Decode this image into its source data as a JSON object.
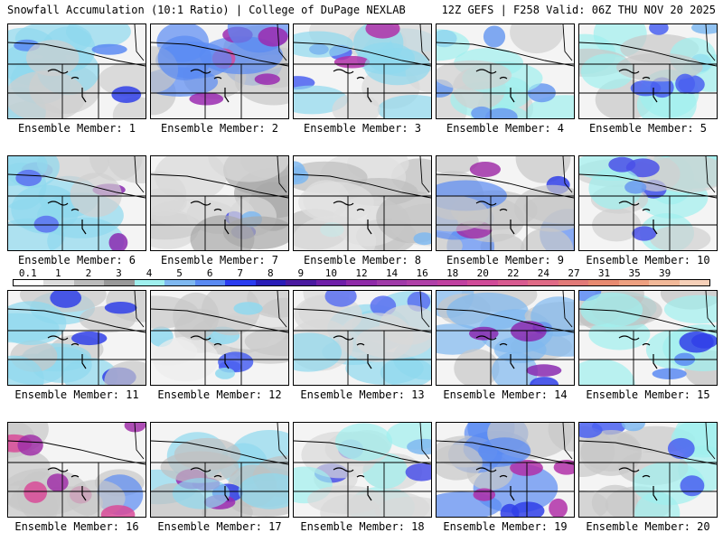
{
  "header": {
    "title": "Snowfall Accumulation (10:1 Ratio) | College of DuPage NEXLAB",
    "run_info": "12Z GEFS | F258 Valid: 06Z THU NOV 20 2025"
  },
  "colorbar": {
    "labels": [
      "0.1",
      "1",
      "2",
      "3",
      "4",
      "5",
      "6",
      "7",
      "8",
      "9",
      "10",
      "12",
      "14",
      "16",
      "18",
      "20",
      "22",
      "24",
      "27",
      "31",
      "35",
      "39"
    ],
    "colors": [
      "#ffffff",
      "#dddddd",
      "#bbbbbb",
      "#999999",
      "#9ff0ee",
      "#7fb8f0",
      "#5a8af2",
      "#2b3cf0",
      "#2a1db8",
      "#4a1aa0",
      "#6f1fa8",
      "#8f2aa8",
      "#a03aa8",
      "#b040a8",
      "#c040a0",
      "#d04a98",
      "#d85a90",
      "#e06a86",
      "#e27a78",
      "#e88a70",
      "#eea080",
      "#f2b898",
      "#f6d0b8"
    ]
  },
  "members": [
    {
      "label": "Ensemble Member: 1",
      "palette": [
        "#cfcfcf",
        "#8fd8ee",
        "#5a8af2",
        "#3040e8"
      ]
    },
    {
      "label": "Ensemble Member: 2",
      "palette": [
        "#c8c8c8",
        "#5a8af2",
        "#9a2ab0",
        "#d44aa0"
      ]
    },
    {
      "label": "Ensemble Member: 3",
      "palette": [
        "#d8d8d8",
        "#8fd8ee",
        "#4a60f0",
        "#b030a8"
      ]
    },
    {
      "label": "Ensemble Member: 4",
      "palette": [
        "#d0d0d0",
        "#9ff0ee",
        "#6a9af0",
        "#4a50e8"
      ]
    },
    {
      "label": "Ensemble Member: 5",
      "palette": [
        "#c8c8c8",
        "#9ff0ee",
        "#7fb8f0",
        "#4a60f0"
      ]
    },
    {
      "label": "Ensemble Member: 6",
      "palette": [
        "#d0d0d0",
        "#8fd8ee",
        "#5a70f0",
        "#8a2ab0"
      ]
    },
    {
      "label": "Ensemble Member: 7",
      "palette": [
        "#d8d8d8",
        "#a8a8a8",
        "#7fb8f0",
        "#4a50e8"
      ]
    },
    {
      "label": "Ensemble Member: 8",
      "palette": [
        "#e0e0e0",
        "#bdbdbd",
        "#9ff0ee",
        "#7fb8f0"
      ]
    },
    {
      "label": "Ensemble Member: 9",
      "palette": [
        "#c8c8c8",
        "#5a8af2",
        "#3040e8",
        "#a030a8"
      ]
    },
    {
      "label": "Ensemble Member: 10",
      "palette": [
        "#d0d0d0",
        "#9ff0ee",
        "#6a9af0",
        "#4a50e8"
      ]
    },
    {
      "label": "Ensemble Member: 11",
      "palette": [
        "#c8c8c8",
        "#8fd8ee",
        "#3040e8",
        "#8a2ab0"
      ]
    },
    {
      "label": "Ensemble Member: 12",
      "palette": [
        "#ececec",
        "#c8c8c8",
        "#8fd8ee",
        "#4a60f0"
      ]
    },
    {
      "label": "Ensemble Member: 13",
      "palette": [
        "#d8d8d8",
        "#8fd8ee",
        "#5a70f0",
        "#a030a8"
      ]
    },
    {
      "label": "Ensemble Member: 14",
      "palette": [
        "#c8c8c8",
        "#7fb8f0",
        "#3040e8",
        "#8a2ab0"
      ]
    },
    {
      "label": "Ensemble Member: 15",
      "palette": [
        "#c0c0c0",
        "#9ff0ee",
        "#5a8af2",
        "#3040e8"
      ]
    },
    {
      "label": "Ensemble Member: 16",
      "palette": [
        "#c8c8c8",
        "#5a8af2",
        "#a030a8",
        "#d84a98"
      ]
    },
    {
      "label": "Ensemble Member: 17",
      "palette": [
        "#c0c0c0",
        "#8fd8ee",
        "#3040e8",
        "#9a2ab0"
      ]
    },
    {
      "label": "Ensemble Member: 18",
      "palette": [
        "#d8d8d8",
        "#9ff0ee",
        "#7fb8f0",
        "#4a50e8"
      ]
    },
    {
      "label": "Ensemble Member: 19",
      "palette": [
        "#c8c8c8",
        "#5a8af2",
        "#3040e8",
        "#b030a8"
      ]
    },
    {
      "label": "Ensemble Member: 20",
      "palette": [
        "#c8c8c8",
        "#9ff0ee",
        "#7fb8f0",
        "#4a60f0"
      ]
    }
  ]
}
